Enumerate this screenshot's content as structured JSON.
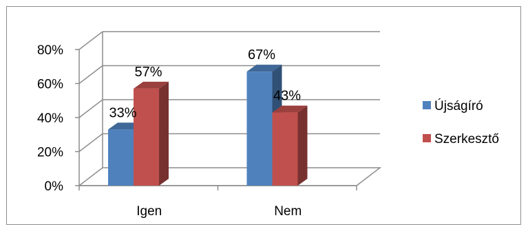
{
  "chart_data": {
    "type": "bar",
    "categories": [
      "Igen",
      "Nem"
    ],
    "series": [
      {
        "name": "Újságíró",
        "values": [
          0.33,
          0.67
        ],
        "labels": [
          "33%",
          "67%"
        ],
        "color": "#4F81BD"
      },
      {
        "name": "Szerkesztő",
        "values": [
          0.57,
          0.43
        ],
        "labels": [
          "57%",
          "43%"
        ],
        "color": "#C0504D"
      }
    ],
    "y_ticks": [
      "0%",
      "20%",
      "40%",
      "60%",
      "80%"
    ],
    "ylim": [
      0,
      0.8
    ],
    "grid": true,
    "legend": "right",
    "style": "3d-clustered-column"
  }
}
